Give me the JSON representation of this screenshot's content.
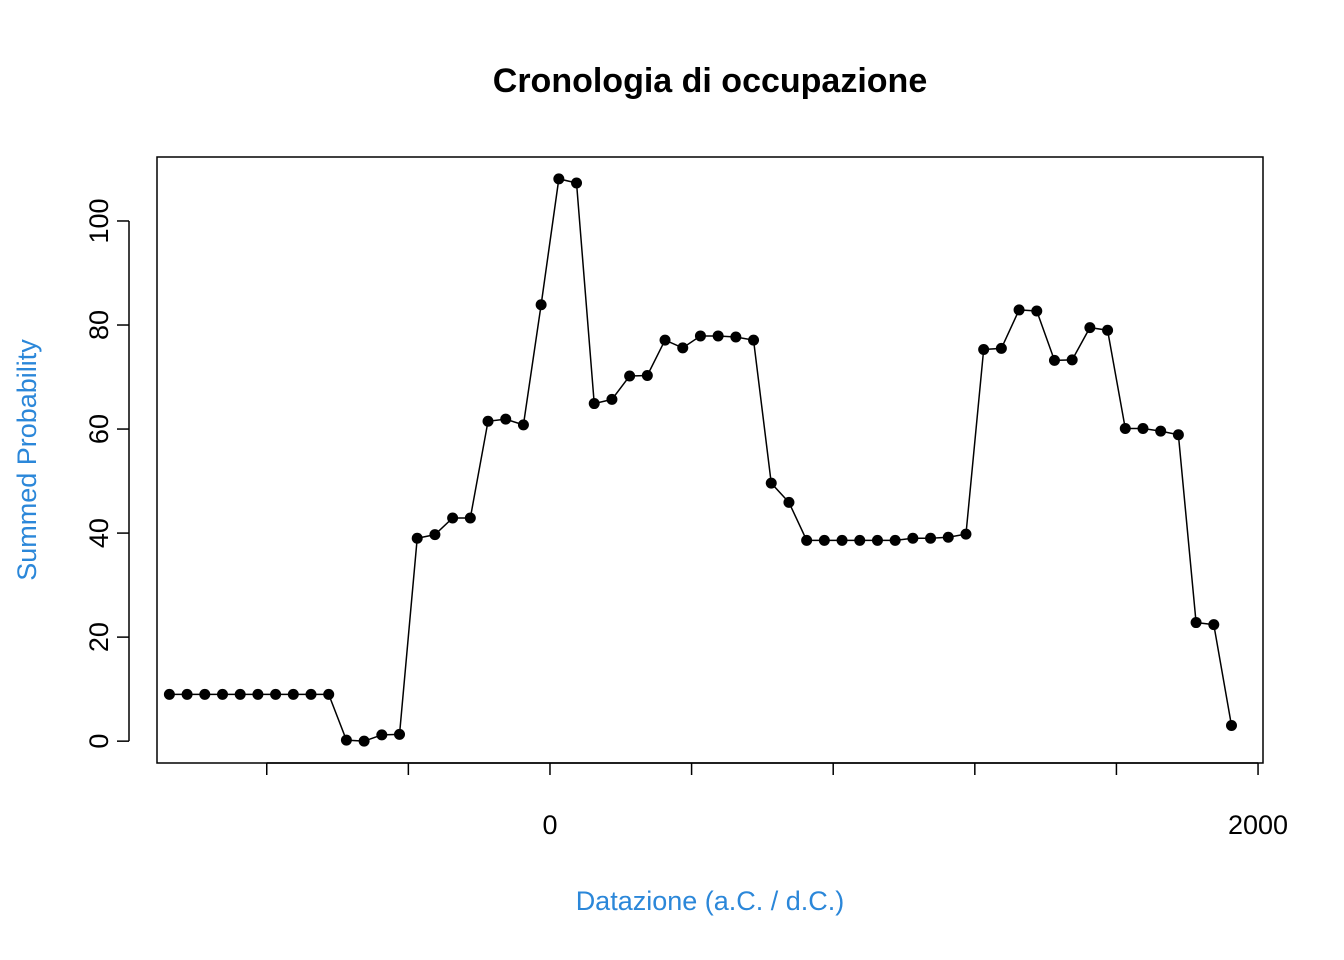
{
  "chart_data": {
    "type": "line-points",
    "title": "Cronologia di occupazione",
    "x_label": "Datazione (a.C. / d.C.)",
    "y_label": "Summed Probability",
    "label_color": "#2b87d9",
    "x": [
      -1075,
      -1025,
      -975,
      -925,
      -875,
      -825,
      -775,
      -725,
      -675,
      -625,
      -575,
      -525,
      -475,
      -425,
      -375,
      -325,
      -275,
      -225,
      -175,
      -125,
      -75,
      -25,
      25,
      75,
      125,
      175,
      225,
      275,
      325,
      375,
      425,
      475,
      525,
      575,
      625,
      675,
      725,
      775,
      825,
      875,
      925,
      975,
      1025,
      1075,
      1125,
      1175,
      1225,
      1275,
      1325,
      1375,
      1425,
      1475,
      1525,
      1575,
      1625,
      1675,
      1725,
      1775,
      1825,
      1875,
      1925
    ],
    "values": [
      9,
      9,
      9,
      9,
      9,
      9,
      9,
      9,
      9,
      9,
      0.2,
      0,
      1.2,
      1.3,
      39,
      39.7,
      42.9,
      42.9,
      61.5,
      61.9,
      60.8,
      83.9,
      108.1,
      107.3,
      64.9,
      65.7,
      70.2,
      70.3,
      77.1,
      75.6,
      77.9,
      77.9,
      77.7,
      77.1,
      49.6,
      45.9,
      38.6,
      38.6,
      38.6,
      38.6,
      38.6,
      38.6,
      39,
      39,
      39.2,
      39.8,
      75.3,
      75.5,
      82.9,
      82.7,
      73.2,
      73.3,
      79.5,
      79,
      60.1,
      60.1,
      59.6,
      58.9,
      22.8,
      22.4,
      3
    ],
    "color": "#000000",
    "xlim": [
      -1110,
      2014
    ],
    "ylim": [
      -4.2,
      112.3
    ],
    "xticks": [
      0,
      2000
    ],
    "xminor_ticks": [
      -800,
      -400,
      400,
      800,
      1200,
      1600
    ],
    "yticks": [
      0,
      20,
      40,
      60,
      80,
      100
    ]
  }
}
